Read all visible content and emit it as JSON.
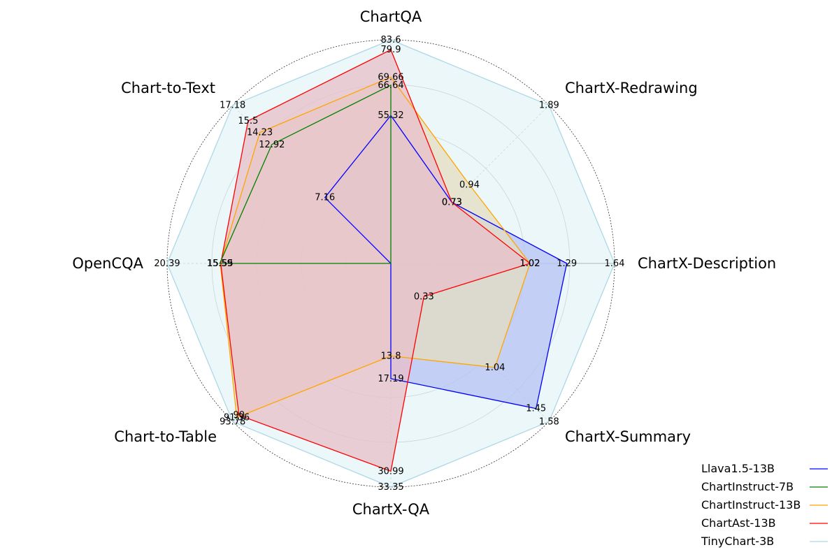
{
  "chart_data": {
    "type": "radar",
    "axes": [
      {
        "name": "ChartX-Description",
        "max_label": "1.64"
      },
      {
        "name": "ChartX-Redrawing",
        "max_label": "1.89"
      },
      {
        "name": "ChartQA",
        "max_label": "83.6"
      },
      {
        "name": "Chart-to-Text",
        "max_label": "17.18"
      },
      {
        "name": "OpenCQA",
        "max_label": "20.39"
      },
      {
        "name": "Chart-to-Table",
        "max_label": "93.78"
      },
      {
        "name": "ChartX-QA",
        "max_label": "33.35"
      },
      {
        "name": "ChartX-Summary",
        "max_label": "1.58"
      }
    ],
    "series": [
      {
        "name": "Llava1.5-13B",
        "color": "#0000ff",
        "fill": true,
        "values": [
          1.29,
          0.73,
          55.32,
          7.16,
          0,
          0,
          17.19,
          1.45
        ],
        "labels": [
          "1.29",
          "0.73",
          "55.32",
          "7.16",
          "",
          "",
          "17.19",
          "1.45"
        ]
      },
      {
        "name": "ChartInstruct-7B",
        "color": "#008000",
        "fill": false,
        "values": [
          0,
          0,
          66.64,
          12.92,
          15.59,
          0,
          0,
          0
        ],
        "labels": [
          "",
          "",
          "66.64",
          "12.92",
          "15.59",
          "",
          "",
          ""
        ]
      },
      {
        "name": "ChartInstruct-13B",
        "color": "#ffa500",
        "fill": true,
        "values": [
          1.02,
          0.94,
          69.66,
          14.23,
          15.55,
          91.36,
          13.8,
          1.04
        ],
        "labels": [
          "1.02",
          "0.94",
          "69.66",
          "14.23",
          "15.55",
          "91.36",
          "13.8",
          "1.04"
        ]
      },
      {
        "name": "ChartAst-13B",
        "color": "#ff0000",
        "fill": true,
        "values": [
          1.02,
          0.73,
          79.9,
          15.5,
          15.5,
          90,
          30.99,
          0.33
        ],
        "labels": [
          "1.02",
          "0.73",
          "79.9",
          "15.5",
          "",
          "90",
          "30.99",
          "0.33"
        ]
      },
      {
        "name": "TinyChart-3B",
        "color": "#add8e6",
        "fill": true,
        "values": [
          1.64,
          1.89,
          83.6,
          17.18,
          20.39,
          93.78,
          33.35,
          1.58
        ],
        "labels": [
          "1.64",
          "1.89",
          "83.6",
          "17.18",
          "20.39",
          "93.78",
          "33.35",
          "1.58"
        ]
      }
    ],
    "fill_colors": {
      "Llava1.5-13B": "#b7c2f4",
      "ChartInstruct-13B": "#e4dcc0",
      "ChartAst-13B": "#e8bfc8",
      "TinyChart-3B": "#e6f4f7"
    },
    "gridlines": true,
    "legend_position": "bottom-right"
  }
}
